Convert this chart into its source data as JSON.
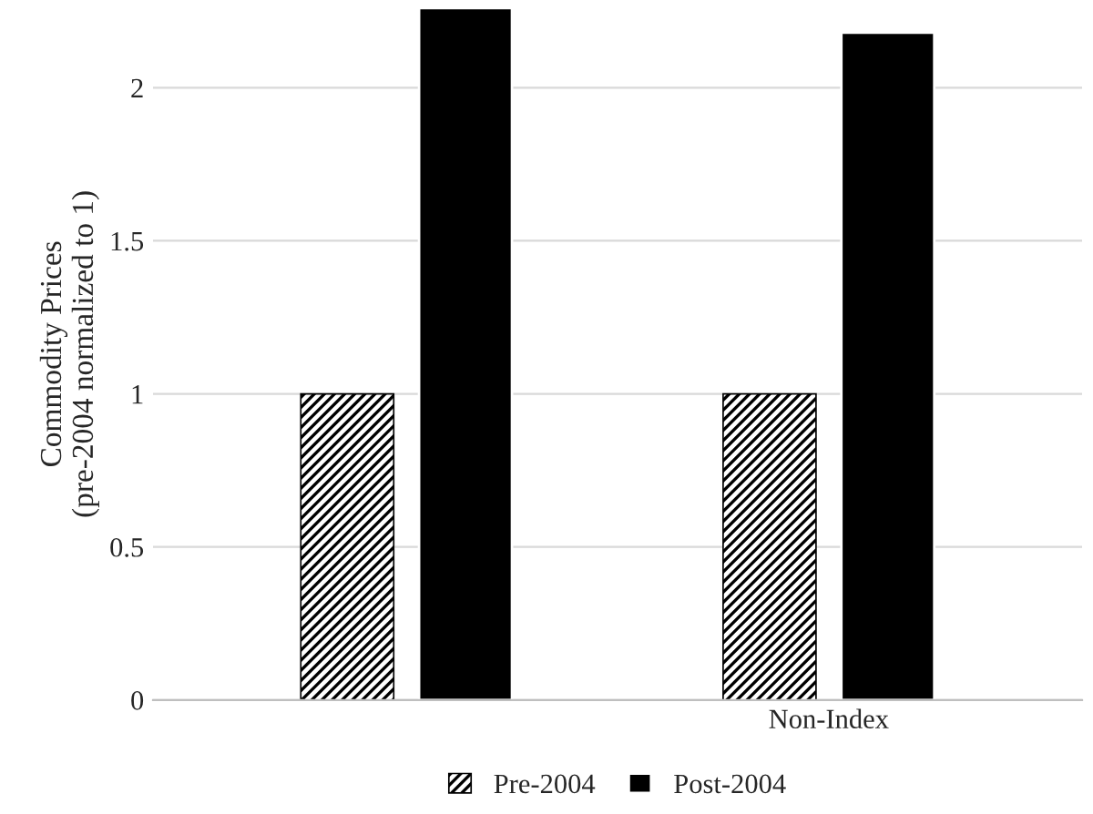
{
  "chart_data": {
    "type": "bar",
    "ylabel": "Commodity Prices\n(pre-2004 normalized to 1)",
    "categories": [
      null,
      "Non-Index"
    ],
    "series": [
      {
        "name": "Pre-2004",
        "color": "#000000",
        "values": [
          1,
          1
        ]
      },
      {
        "name": "Post-2004",
        "color": "#000000",
        "values": [
          2.26,
          2.18
        ]
      }
    ],
    "ylim": [
      0,
      2.26
    ],
    "yticks": [
      0,
      0.5,
      1,
      1.5,
      2
    ],
    "grid": "y",
    "legend": "bottom"
  }
}
